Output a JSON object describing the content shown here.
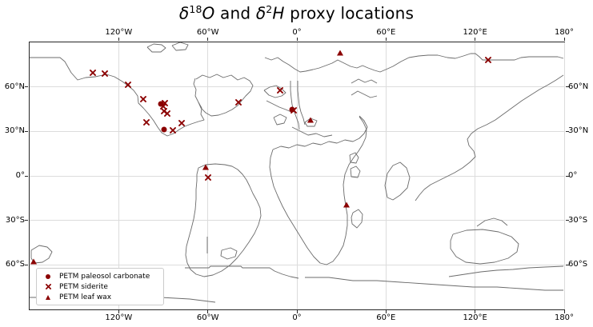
{
  "title": {
    "plain": "δ18O and δ2H proxy locations",
    "parts": [
      {
        "text": "δ",
        "style": "italic"
      },
      {
        "text": "18",
        "style": "sup"
      },
      {
        "text": "O",
        "style": "italic"
      },
      {
        "text": " and ",
        "style": "normal"
      },
      {
        "text": "δ",
        "style": "italic"
      },
      {
        "text": "2",
        "style": "sup"
      },
      {
        "text": "H",
        "style": "italic"
      },
      {
        "text": " proxy locations",
        "style": "normal"
      }
    ]
  },
  "axes": {
    "lon_tick_labels": [
      "120°W",
      "60°W",
      "0°",
      "60°E",
      "120°E",
      "180°"
    ],
    "lat_tick_labels": [
      "60°N",
      "30°N",
      "0°",
      "30°S",
      "60°S"
    ]
  },
  "legend": {
    "items": [
      {
        "label": "PETM paleosol carbonate",
        "marker": "circle"
      },
      {
        "label": "PETM siderite",
        "marker": "x"
      },
      {
        "label": "PETM leaf wax",
        "marker": "triangle"
      }
    ]
  },
  "colors": {
    "marker": "#8B0000",
    "coastline": "#6b6b6b",
    "gridline": "#dcdcdc",
    "spine": "#262626",
    "background": "#ffffff"
  },
  "chart_data": {
    "type": "scatter",
    "title": "δ18O and δ2H proxy locations",
    "projection": "plate-carree paleogeographic world map",
    "xlim": [
      -180,
      180
    ],
    "ylim": [
      -90,
      90
    ],
    "x_ticks": [
      -120,
      -60,
      0,
      60,
      120,
      180
    ],
    "y_ticks": [
      60,
      30,
      0,
      -30,
      -60
    ],
    "grid": true,
    "legend_position": "lower left",
    "series": [
      {
        "name": "PETM paleosol carbonate",
        "marker": "circle",
        "color": "#8B0000",
        "points": [
          [
            -91.6,
            48.5
          ],
          [
            -89.5,
            31.3
          ],
          [
            -3.2,
            44.7
          ]
        ]
      },
      {
        "name": "PETM siderite",
        "marker": "x",
        "color": "#8B0000",
        "points": [
          [
            -137.4,
            69.5
          ],
          [
            -129.3,
            69.0
          ],
          [
            -113.7,
            61.4
          ],
          [
            -103.5,
            51.7
          ],
          [
            -88.9,
            49.0
          ],
          [
            -90.0,
            46.9
          ],
          [
            -89.5,
            43.7
          ],
          [
            -87.3,
            42.0
          ],
          [
            -101.3,
            36.1
          ],
          [
            -83.5,
            30.7
          ],
          [
            -77.6,
            35.6
          ],
          [
            -39.3,
            49.6
          ],
          [
            -11.3,
            57.7
          ],
          [
            -2.2,
            44.2
          ],
          [
            -59.8,
            -1.1
          ],
          [
            128.8,
            78.1
          ]
        ]
      },
      {
        "name": "PETM leaf wax",
        "marker": "triangle",
        "color": "#8B0000",
        "points": [
          [
            29.1,
            83.0
          ],
          [
            9.2,
            37.7
          ],
          [
            -61.4,
            5.9
          ],
          [
            33.4,
            -19.4
          ],
          [
            -177.3,
            -57.7
          ]
        ]
      }
    ]
  }
}
